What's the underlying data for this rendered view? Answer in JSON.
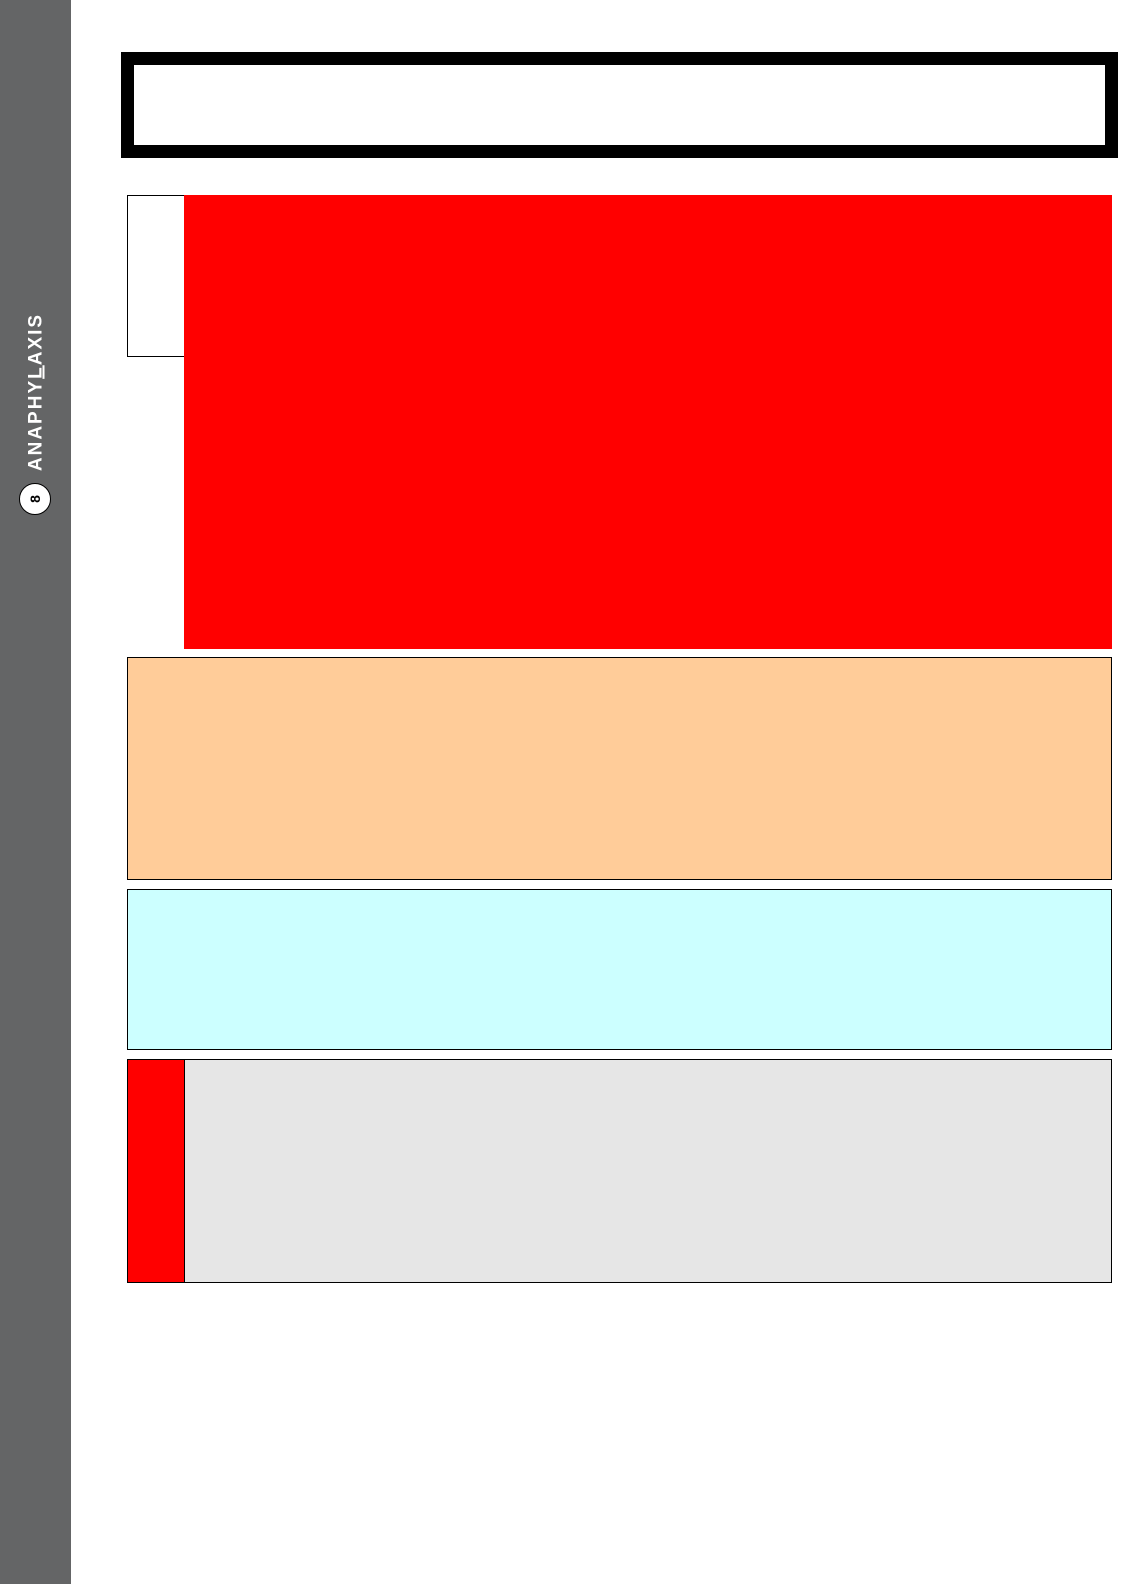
{
  "spine": {
    "label_before": "ANAPHY",
    "label_accent": "L",
    "label_after": "AXIS",
    "page_number": "8"
  },
  "colors": {
    "spine": "#646566",
    "alert": "#ff0000",
    "peach": "#ffcc99",
    "cyan": "#ccffff",
    "grey": "#e6e6e6",
    "frame": "#000000"
  },
  "title": {
    "text": ""
  }
}
